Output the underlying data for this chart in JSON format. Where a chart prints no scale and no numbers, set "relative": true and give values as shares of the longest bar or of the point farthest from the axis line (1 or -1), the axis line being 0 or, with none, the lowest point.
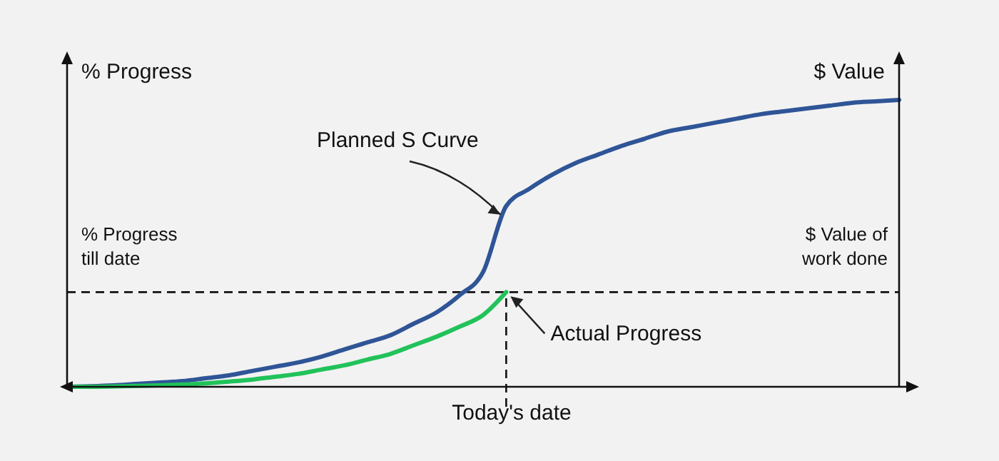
{
  "chart_data": {
    "type": "line",
    "relative": true,
    "xlabel": "Today's date",
    "ylabel": "% Progress",
    "y2label": "$ Value",
    "categories": [
      null,
      null,
      null,
      null,
      null,
      null,
      null,
      null,
      null,
      null,
      null,
      null,
      null,
      null,
      null,
      null,
      null,
      null,
      null,
      null,
      null,
      null,
      null,
      null,
      null,
      null,
      null,
      null,
      null,
      null,
      null,
      null,
      null,
      null,
      null,
      null,
      null
    ],
    "series": [
      {
        "name": "Planned S Curve",
        "color": "#2f5597",
        "values": [
          0,
          0.002,
          0.005,
          0.01,
          0.015,
          0.02,
          0.03,
          0.04,
          0.055,
          0.07,
          0.085,
          0.105,
          0.13,
          0.155,
          0.18,
          0.22,
          0.26,
          0.32,
          0.4,
          0.63,
          0.69,
          0.74,
          0.78,
          0.81,
          0.84,
          0.865,
          0.89,
          0.905,
          0.92,
          0.935,
          0.95,
          0.96,
          0.97,
          0.98,
          0.99,
          0.995,
          1
        ]
      },
      {
        "name": "Actual Progress",
        "color": "#21c25a",
        "values": [
          0,
          0,
          0.001,
          0.003,
          0.005,
          0.008,
          0.012,
          0.018,
          0.025,
          0.035,
          0.045,
          0.06,
          0.075,
          0.095,
          0.115,
          0.145,
          0.175,
          0.21,
          0.25,
          0.33,
          null,
          null,
          null,
          null,
          null,
          null,
          null,
          null,
          null,
          null,
          null,
          null,
          null,
          null,
          null,
          null,
          null
        ]
      }
    ],
    "ref_lines": [
      {
        "axis": "y",
        "value": 0.33,
        "label": "% Progress till date",
        "line_style": "dashed"
      }
    ],
    "annotations": [
      "$ Value of work done"
    ],
    "grid": false
  }
}
